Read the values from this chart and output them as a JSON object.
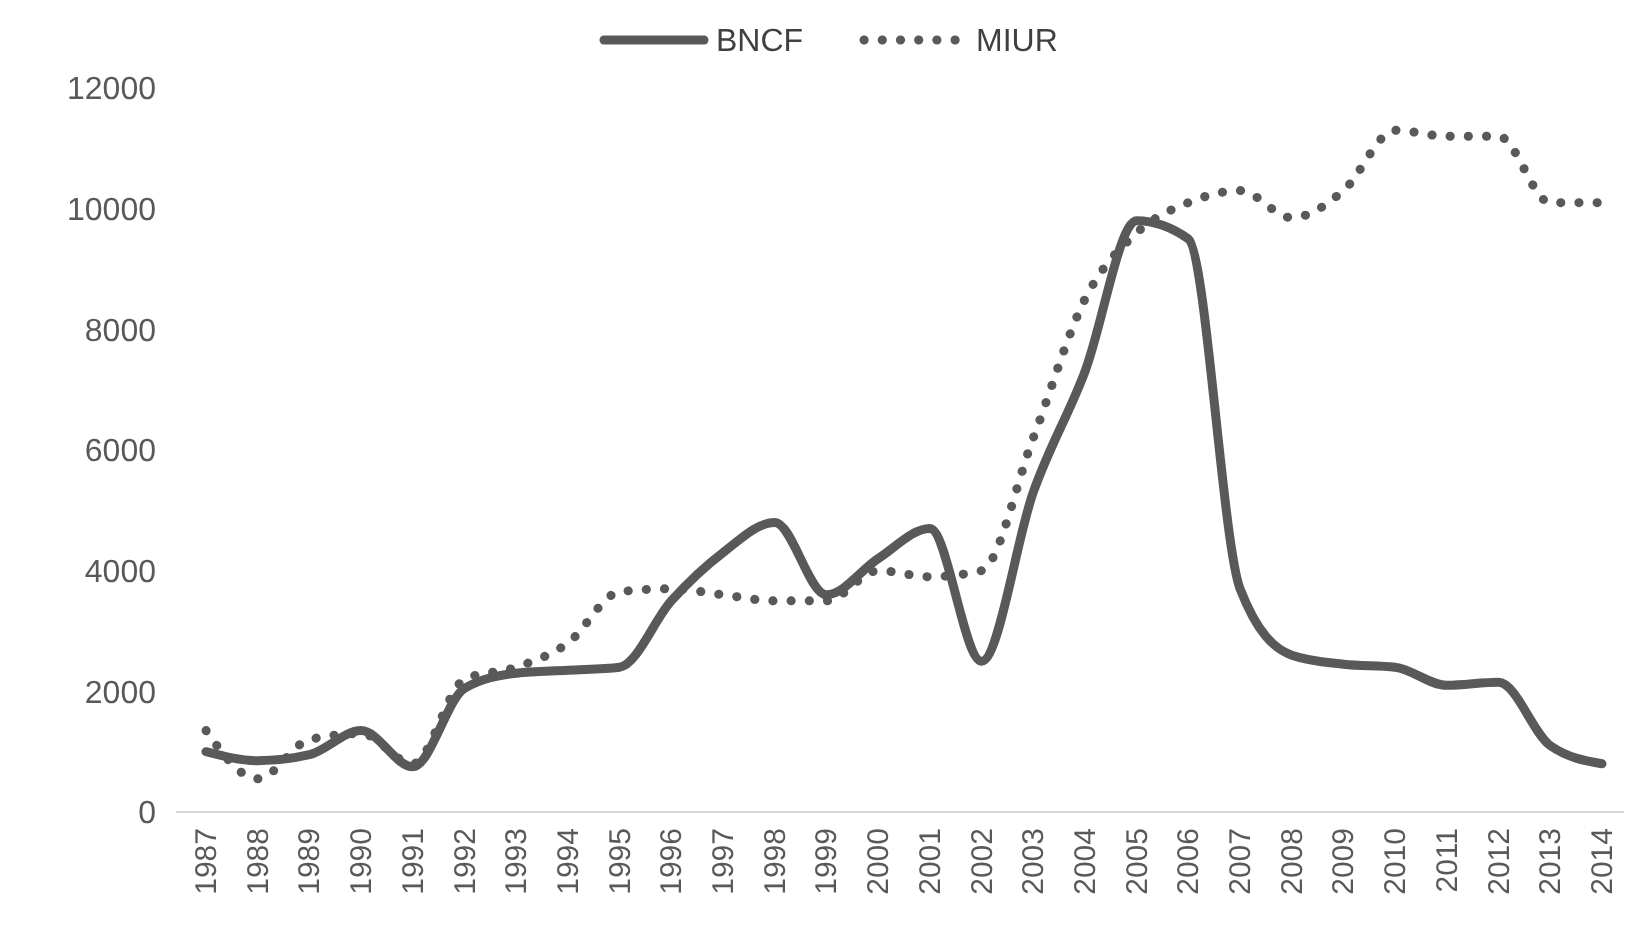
{
  "chart_data": {
    "type": "line",
    "categories": [
      "1987",
      "1988",
      "1989",
      "1990",
      "1991",
      "1992",
      "1993",
      "1994",
      "1995",
      "1996",
      "1997",
      "1998",
      "1999",
      "2000",
      "2001",
      "2002",
      "2003",
      "2004",
      "2005",
      "2006",
      "2007",
      "2008",
      "2009",
      "2010",
      "2011",
      "2012",
      "2013",
      "2014"
    ],
    "series": [
      {
        "name": "BNCF",
        "color": "#595959",
        "line_style": "solid",
        "values": [
          1000,
          850,
          950,
          1350,
          750,
          2050,
          2300,
          2350,
          2400,
          3500,
          4300,
          4800,
          3600,
          4200,
          4700,
          2500,
          5300,
          7300,
          9800,
          9500,
          3700,
          2600,
          2450,
          2400,
          2100,
          2150,
          1100,
          800
        ]
      },
      {
        "name": "MIUR",
        "color": "#595959",
        "line_style": "dotted",
        "values": [
          1350,
          550,
          1200,
          1300,
          800,
          2200,
          2400,
          2800,
          3650,
          3700,
          3600,
          3500,
          3500,
          4000,
          3900,
          4000,
          6200,
          8500,
          9600,
          10100,
          10300,
          9850,
          10300,
          11300,
          11200,
          11200,
          10100,
          10100
        ]
      }
    ],
    "ylim": [
      0,
      12000
    ],
    "yticks": [
      0,
      2000,
      4000,
      6000,
      8000,
      10000,
      12000
    ],
    "grid": false,
    "legend": "top",
    "marker": "none"
  }
}
